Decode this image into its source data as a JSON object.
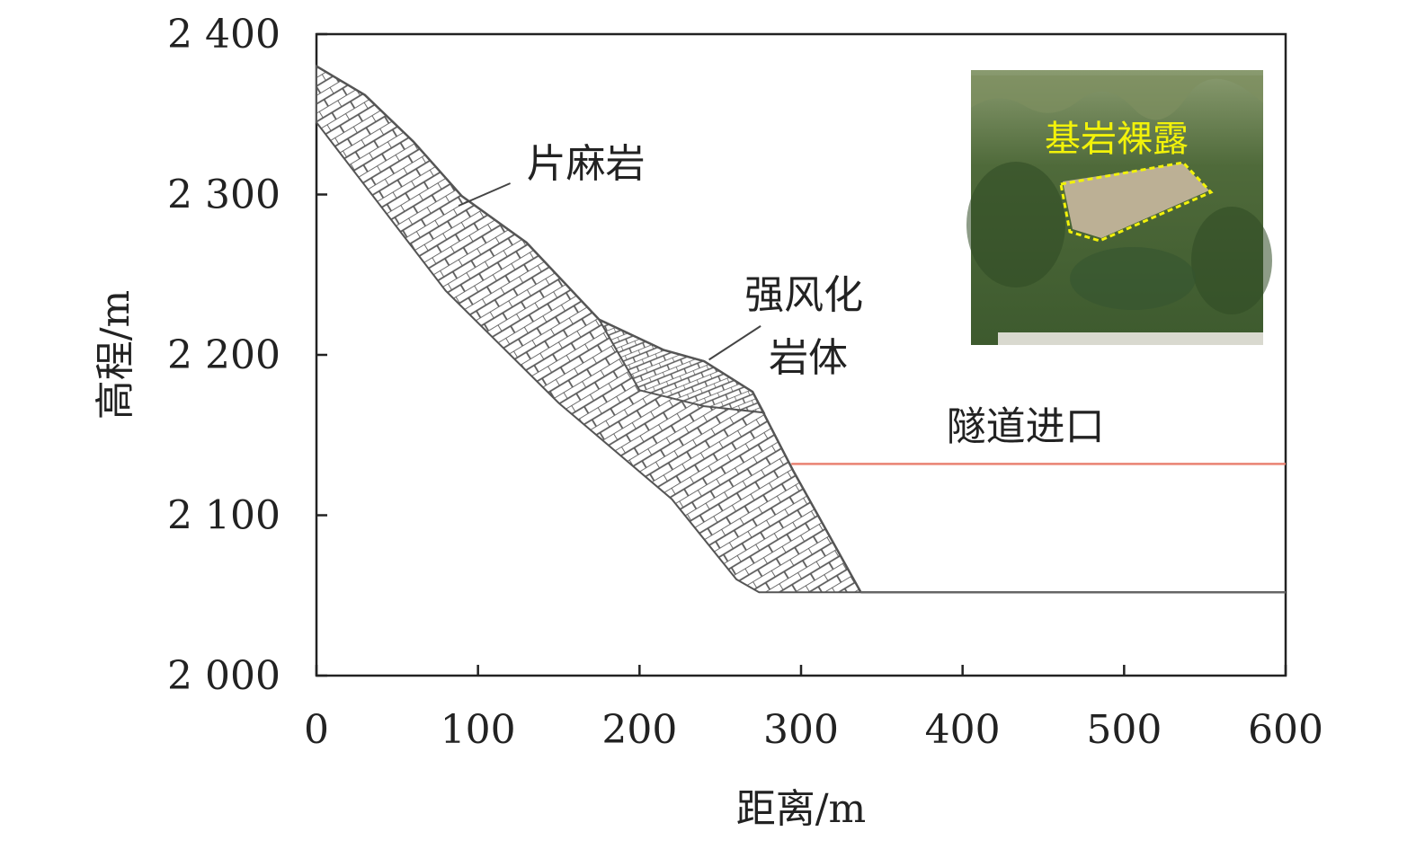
{
  "chart_data": {
    "type": "line",
    "xlabel": "距离/m",
    "ylabel": "高程/m",
    "xlim": [
      0,
      600
    ],
    "ylim": [
      2000,
      2400
    ],
    "x_ticks": [
      "0",
      "100",
      "200",
      "300",
      "400",
      "500",
      "600"
    ],
    "y_ticks": [
      "2 000",
      "2 100",
      "2 200",
      "2 300",
      "2 400"
    ],
    "series": [
      {
        "key": "slope",
        "color": "#555555",
        "points": [
          [
            0,
            2380
          ],
          [
            30,
            2362
          ],
          [
            60,
            2333
          ],
          [
            90,
            2299
          ],
          [
            130,
            2270
          ],
          [
            175,
            2222
          ],
          [
            215,
            2203
          ],
          [
            240,
            2196
          ],
          [
            270,
            2177
          ],
          [
            295,
            2128
          ],
          [
            337,
            2052
          ]
        ]
      },
      {
        "key": "weathered",
        "color": "#555555",
        "points": [
          [
            175,
            2222
          ],
          [
            215,
            2203
          ],
          [
            240,
            2196
          ],
          [
            270,
            2177
          ],
          [
            277,
            2164
          ],
          [
            240,
            2168
          ],
          [
            200,
            2178
          ],
          [
            175,
            2222
          ]
        ]
      },
      {
        "key": "tunnel_entrance_line",
        "color": "#e98272",
        "points": [
          [
            294,
            2132
          ],
          [
            600,
            2132
          ]
        ]
      },
      {
        "key": "base_line",
        "color": "#666666",
        "points": [
          [
            337,
            2052
          ],
          [
            600,
            2052
          ]
        ]
      }
    ],
    "annotations": [
      {
        "key": "rock",
        "text": "片麻岩",
        "x": 130,
        "y": 2311,
        "leader": [
          [
            88,
            2293
          ],
          [
            120,
            2307
          ]
        ]
      },
      {
        "key": "weathered",
        "text": "强风化",
        "x": 265,
        "y": 2229,
        "leader": [
          [
            243,
            2197
          ],
          [
            275,
            2218
          ]
        ]
      },
      {
        "key": "weathered2",
        "text": "岩体",
        "x": 280,
        "y": 2190
      },
      {
        "key": "tunnel",
        "text": "隧道进口",
        "x": 390,
        "y": 2147
      }
    ],
    "inset_photo": {
      "label": "基岩裸露",
      "outline_color": "#f2f20a"
    }
  }
}
